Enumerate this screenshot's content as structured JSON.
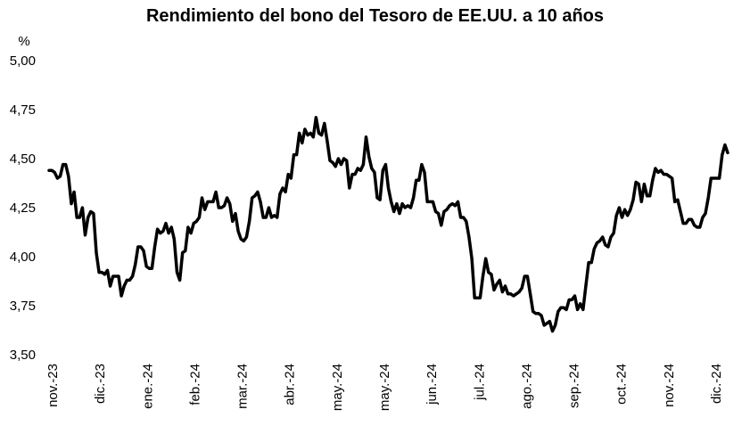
{
  "chart_data": {
    "type": "line",
    "title": "Rendimiento del bono del Tesoro de EE.UU. a 10 años",
    "ylabel": "%",
    "xlabel": "",
    "ylim": [
      3.5,
      5.0
    ],
    "yticks": [
      3.5,
      3.75,
      4.0,
      4.25,
      4.5,
      4.75,
      5.0
    ],
    "ytick_labels": [
      "3,50",
      "3,75",
      "4,00",
      "4,25",
      "4,50",
      "4,75",
      "5,00"
    ],
    "xticks": [
      "nov.-23",
      "dic.-23",
      "ene.-24",
      "feb.-24",
      "mar.-24",
      "abr.-24",
      "may.-24",
      "may.-24",
      "jun.-24",
      "jul.-24",
      "ago.-24",
      "sep.-24",
      "oct.-24",
      "nov.-24",
      "dic.-24"
    ],
    "grid": false,
    "legend": "none",
    "line_color": "#000000",
    "series": [
      {
        "values": [
          4.44,
          4.44,
          4.43,
          4.4,
          4.41,
          4.47,
          4.47,
          4.41,
          4.27,
          4.33,
          4.2,
          4.2,
          4.25,
          4.11,
          4.2,
          4.23,
          4.22,
          4.02,
          3.92,
          3.92,
          3.91,
          3.93,
          3.85,
          3.9,
          3.9,
          3.9,
          3.8,
          3.85,
          3.88,
          3.88,
          3.9,
          3.96,
          4.05,
          4.05,
          4.03,
          3.95,
          3.94,
          3.94,
          4.05,
          4.14,
          4.12,
          4.13,
          4.17,
          4.12,
          4.15,
          4.09,
          3.92,
          3.88,
          4.02,
          4.03,
          4.15,
          4.12,
          4.17,
          4.18,
          4.2,
          4.3,
          4.24,
          4.28,
          4.28,
          4.28,
          4.33,
          4.25,
          4.25,
          4.26,
          4.3,
          4.27,
          4.18,
          4.22,
          4.13,
          4.09,
          4.08,
          4.1,
          4.18,
          4.3,
          4.31,
          4.33,
          4.28,
          4.2,
          4.2,
          4.25,
          4.2,
          4.21,
          4.2,
          4.32,
          4.35,
          4.33,
          4.42,
          4.4,
          4.52,
          4.52,
          4.63,
          4.58,
          4.65,
          4.62,
          4.63,
          4.61,
          4.71,
          4.63,
          4.62,
          4.68,
          4.59,
          4.49,
          4.48,
          4.46,
          4.5,
          4.47,
          4.5,
          4.49,
          4.35,
          4.42,
          4.42,
          4.45,
          4.44,
          4.47,
          4.61,
          4.51,
          4.45,
          4.43,
          4.3,
          4.29,
          4.44,
          4.47,
          4.35,
          4.28,
          4.23,
          4.27,
          4.22,
          4.27,
          4.25,
          4.26,
          4.25,
          4.3,
          4.39,
          4.39,
          4.47,
          4.43,
          4.28,
          4.28,
          4.28,
          4.23,
          4.22,
          4.16,
          4.23,
          4.24,
          4.26,
          4.27,
          4.26,
          4.28,
          4.2,
          4.2,
          4.18,
          4.1,
          3.99,
          3.79,
          3.79,
          3.79,
          3.9,
          3.99,
          3.92,
          3.91,
          3.83,
          3.86,
          3.88,
          3.82,
          3.85,
          3.81,
          3.81,
          3.8,
          3.81,
          3.82,
          3.84,
          3.9,
          3.9,
          3.81,
          3.72,
          3.71,
          3.71,
          3.7,
          3.65,
          3.66,
          3.67,
          3.62,
          3.65,
          3.72,
          3.74,
          3.74,
          3.73,
          3.78,
          3.78,
          3.8,
          3.73,
          3.76,
          3.73,
          3.85,
          3.97,
          3.97,
          4.04,
          4.07,
          4.08,
          4.1,
          4.06,
          4.05,
          4.1,
          4.12,
          4.21,
          4.25,
          4.2,
          4.24,
          4.21,
          4.24,
          4.29,
          4.38,
          4.37,
          4.28,
          4.37,
          4.31,
          4.31,
          4.39,
          4.45,
          4.43,
          4.44,
          4.42,
          4.42,
          4.41,
          4.4,
          4.28,
          4.29,
          4.23,
          4.17,
          4.17,
          4.19,
          4.19,
          4.16,
          4.15,
          4.15,
          4.2,
          4.22,
          4.3,
          4.4,
          4.4,
          4.4,
          4.4,
          4.52,
          4.57,
          4.53
        ]
      }
    ]
  }
}
